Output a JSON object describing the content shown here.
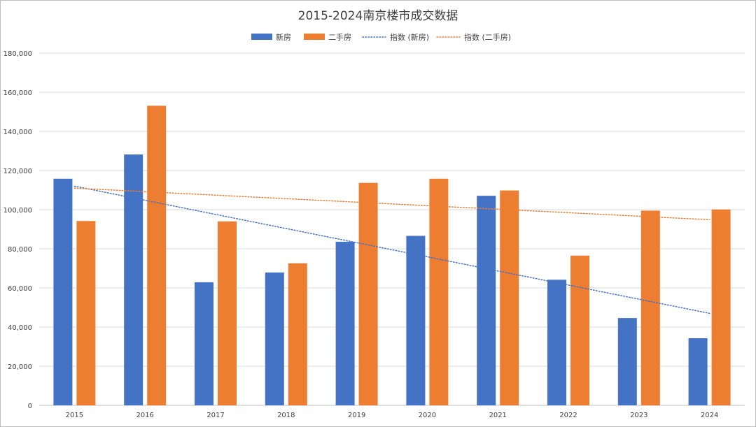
{
  "chart_data": {
    "type": "bar",
    "title": "2015-2024南京楼市成交数据",
    "categories": [
      "2015",
      "2016",
      "2017",
      "2018",
      "2019",
      "2020",
      "2021",
      "2022",
      "2023",
      "2024"
    ],
    "series": [
      {
        "name": "新房",
        "color": "#4472c4",
        "values": [
          115800,
          128200,
          62900,
          67900,
          83600,
          86600,
          107100,
          64200,
          44600,
          34300
        ]
      },
      {
        "name": "二手房",
        "color": "#ed7d31",
        "values": [
          94200,
          153100,
          94000,
          72600,
          113700,
          115800,
          109800,
          76500,
          99500,
          100100
        ]
      }
    ],
    "trendlines": [
      {
        "name": "指数 (新房)",
        "color": "#4472c4",
        "style": "dotted",
        "type": "linear"
      },
      {
        "name": "指数 (二手房)",
        "color": "#ed7d31",
        "style": "dotted",
        "type": "linear"
      }
    ],
    "ylim": [
      0,
      180000
    ],
    "yticks": [
      0,
      20000,
      40000,
      60000,
      80000,
      100000,
      120000,
      140000,
      160000,
      180000
    ],
    "ytick_labels": [
      "0",
      "20,000",
      "40,000",
      "60,000",
      "80,000",
      "100,000",
      "120,000",
      "140,000",
      "160,000",
      "180,000"
    ],
    "xlabel": "",
    "ylabel": "",
    "grid": true,
    "legend_position": "top"
  }
}
